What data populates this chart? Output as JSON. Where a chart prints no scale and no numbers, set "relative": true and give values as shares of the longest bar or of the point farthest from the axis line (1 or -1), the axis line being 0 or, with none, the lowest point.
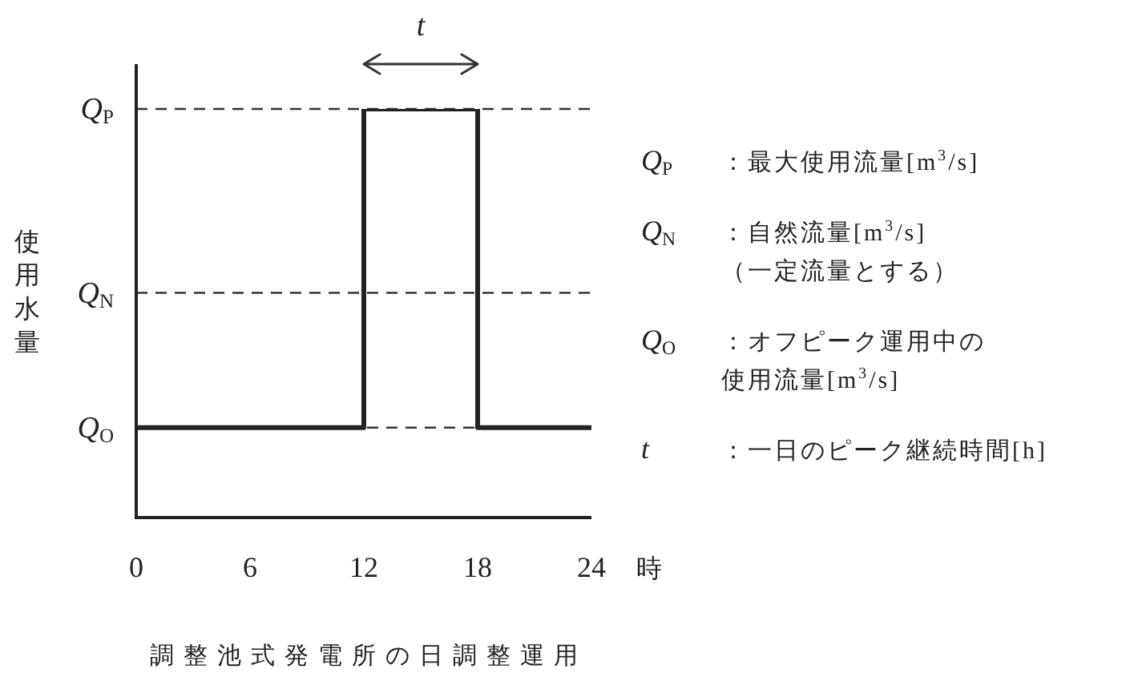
{
  "chart_data": {
    "type": "step",
    "title": "調整池式発電所の日調整運用",
    "xlabel": "時",
    "ylabel": "使用水量",
    "x": [
      0,
      12,
      18,
      24
    ],
    "values": [
      0.22,
      1,
      0.22,
      0.22
    ],
    "color": "#222222",
    "relative": true,
    "line_style": "solid",
    "xlim": [
      0,
      24
    ],
    "xticks": [
      0,
      6,
      12,
      18,
      24
    ],
    "ref_lines": [
      {
        "axis": "y",
        "value": 1,
        "label": "Q$_{P}$",
        "line_style": "dashed",
        "color": "#333333"
      },
      {
        "axis": "y",
        "value": 0.55,
        "label": "Q$_{N}$",
        "line_style": "dashed",
        "color": "#333333"
      },
      {
        "axis": "y",
        "value": 0.22,
        "label": "Q$_{O}$",
        "line_style": "dashed",
        "color": "#333333"
      }
    ],
    "annotations": [
      "t",
      "Q$_{P}$ ：最大使用流量[m$^{3}$/s]",
      "Q$_{N}$ ：自然流量[m$^{3}$/s]（一定流量とする）",
      "Q$_{O}$ ：オフピーク運用中の使用流量[m$^{3}$/s]",
      "t ：一日のピーク継続時間[h]"
    ]
  }
}
